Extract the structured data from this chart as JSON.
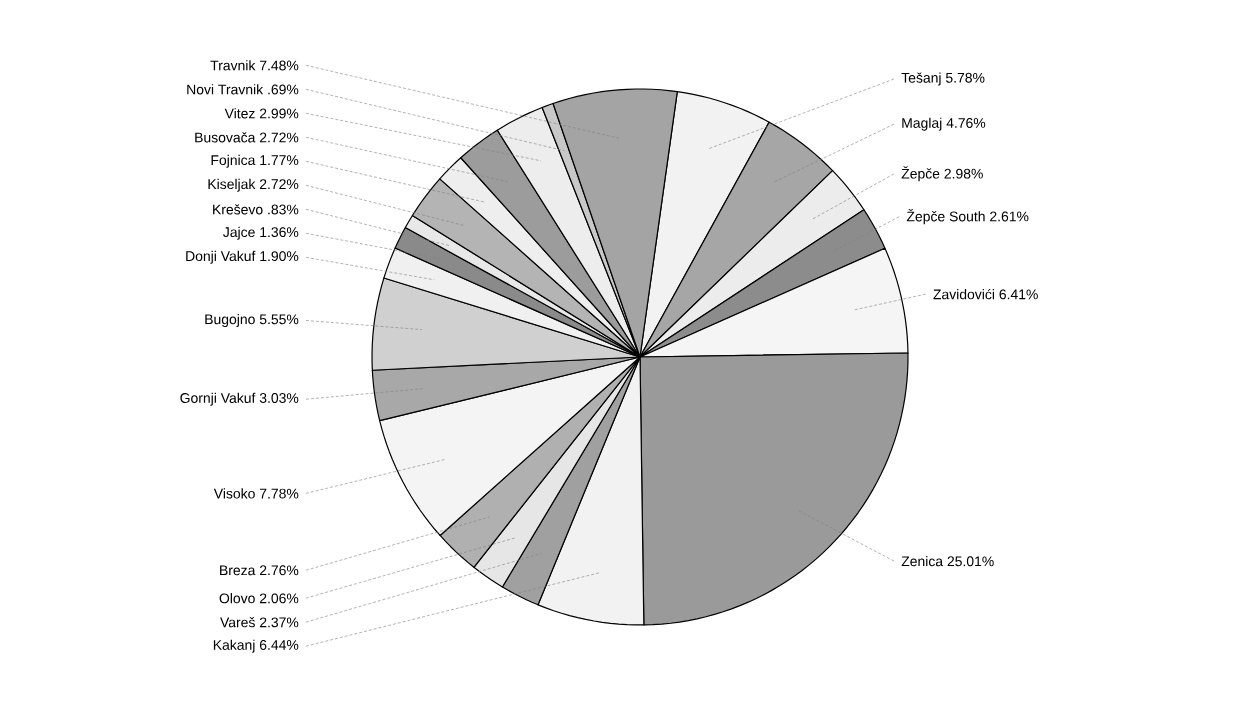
{
  "chart_data": {
    "type": "pie",
    "categories": [
      "Tešanj",
      "Maglaj",
      "Žepče",
      "Žepče South",
      "Zavidovići",
      "Zenica",
      "Kakanj",
      "Vareš",
      "Olovo",
      "Breza",
      "Visoko",
      "Gornji Vakuf",
      "Bugojno",
      "Donji Vakuf",
      "Jajce",
      "Kreševo",
      "Kiseljak",
      "Fojnica",
      "Busovača",
      "Vitez",
      "Novi Travnik",
      "Travnik"
    ],
    "values": [
      5.78,
      4.76,
      2.98,
      2.61,
      6.41,
      25.01,
      6.44,
      2.37,
      2.06,
      2.76,
      7.78,
      3.03,
      5.55,
      1.9,
      1.36,
      0.83,
      2.72,
      1.77,
      2.72,
      2.99,
      0.69,
      7.48
    ],
    "value_labels": [
      "5.78%",
      "4.76%",
      "2.98%",
      "2.61%",
      "6.41%",
      "25.01%",
      "6.44%",
      "2.37%",
      "2.06%",
      "2.76%",
      "7.78%",
      "3.03%",
      "5.55%",
      "1.90%",
      "1.36%",
      ".83%",
      "2.72%",
      "1.77%",
      "2.72%",
      "2.99%",
      ".69%",
      "7.48%"
    ],
    "colors": [
      "#f2f2f2",
      "#a6a6a6",
      "#ececec",
      "#8c8c8c",
      "#f5f5f5",
      "#9a9a9a",
      "#f2f2f2",
      "#a0a0a0",
      "#e6e6e6",
      "#b0b0b0",
      "#f4f4f4",
      "#a8a8a8",
      "#d0d0d0",
      "#f0f0f0",
      "#8a8a8a",
      "#e8e8e8",
      "#b4b4b4",
      "#eeeeee",
      "#9c9c9c",
      "#ededed",
      "#c8c8c8",
      "#a4a4a4"
    ]
  }
}
